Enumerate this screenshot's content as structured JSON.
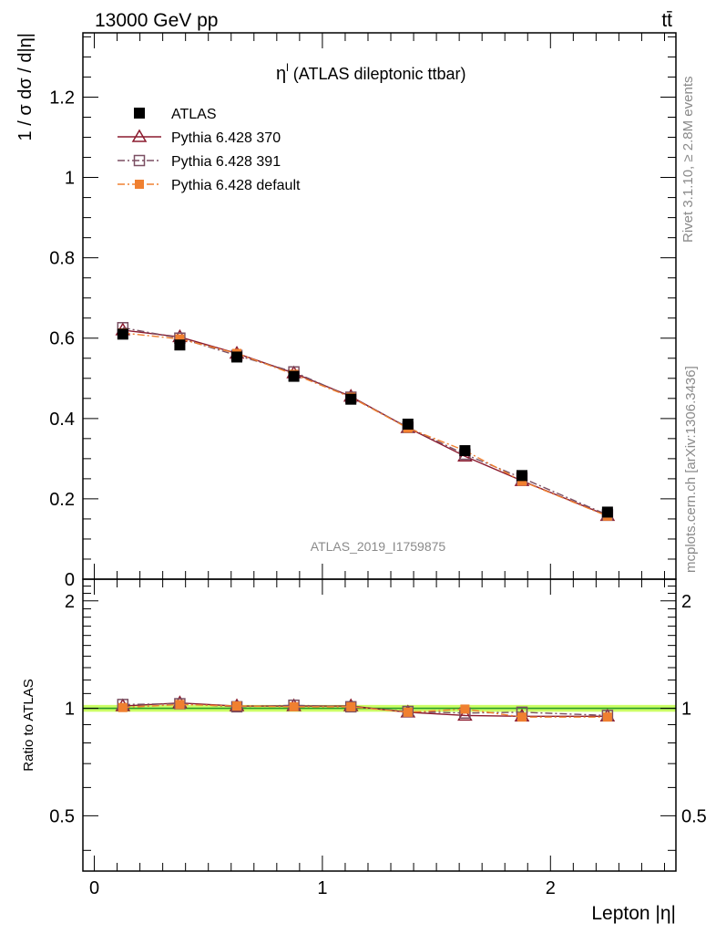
{
  "header": {
    "energy_label": "13000 GeV pp",
    "process_label": "tt̄"
  },
  "side": {
    "rivet_label": "Rivet 3.1.10, ≥ 2.8M events",
    "mcplots_label": "mcplots.cern.ch [arXiv:1306.3436]"
  },
  "chart_data": {
    "type": "line",
    "title": "η^l (ATLAS dileptonic ttbar)",
    "title_main": "η",
    "title_sup": "l",
    "title_rest": " (ATLAS dileptonic ttbar)",
    "analysis_id": "ATLAS_2019_I1759875",
    "xlabel": "Lepton |η|",
    "ylabel": "1 / σ  dσ / d|η|",
    "ratio_ylabel": "Ratio to ATLAS",
    "xlim": [
      -0.05,
      2.55
    ],
    "ylim": [
      0,
      1.36
    ],
    "ratio_ylim": [
      0.35,
      2.3
    ],
    "x_ticks": [
      "0",
      "1",
      "2"
    ],
    "y_ticks": [
      "0",
      "0.2",
      "0.4",
      "0.6",
      "0.8",
      "1",
      "1.2"
    ],
    "ratio_ticks": [
      "0.5",
      "1",
      "2"
    ],
    "legend_position": "top-left",
    "x": [
      0.125,
      0.375,
      0.625,
      0.875,
      1.125,
      1.375,
      1.625,
      1.875,
      2.25
    ],
    "series": [
      {
        "name": "ATLAS",
        "values": [
          0.61,
          0.583,
          0.553,
          0.505,
          0.448,
          0.386,
          0.32,
          0.258,
          0.167
        ],
        "color": "#000000",
        "marker": "filled-square",
        "line": "none"
      },
      {
        "name": "Pythia 6.428 370",
        "values": [
          0.62,
          0.603,
          0.562,
          0.513,
          0.455,
          0.377,
          0.306,
          0.245,
          0.158
        ],
        "color": "#8b1a2e",
        "marker": "open-triangle",
        "line": "solid"
      },
      {
        "name": "Pythia 6.428 391",
        "values": [
          0.626,
          0.6,
          0.557,
          0.516,
          0.453,
          0.378,
          0.311,
          0.252,
          0.16
        ],
        "color": "#7a4f62",
        "marker": "open-square",
        "line": "dashdot"
      },
      {
        "name": "Pythia 6.428 default",
        "values": [
          0.613,
          0.598,
          0.562,
          0.51,
          0.453,
          0.376,
          0.32,
          0.244,
          0.157
        ],
        "color": "#f08030",
        "marker": "filled-small-square",
        "line": "dashdot"
      }
    ],
    "ratio_series": [
      {
        "name": "Pythia 6.428 370",
        "values": [
          1.015,
          1.035,
          1.015,
          1.015,
          1.015,
          0.975,
          0.955,
          0.95,
          0.95
        ]
      },
      {
        "name": "Pythia 6.428 391",
        "values": [
          1.025,
          1.03,
          1.01,
          1.02,
          1.01,
          0.98,
          0.97,
          0.975,
          0.955
        ]
      },
      {
        "name": "Pythia 6.428 default",
        "values": [
          1.005,
          1.025,
          1.015,
          1.01,
          1.01,
          0.975,
          0.995,
          0.945,
          0.945
        ]
      }
    ],
    "ratio_band_color": "#ccff66"
  }
}
